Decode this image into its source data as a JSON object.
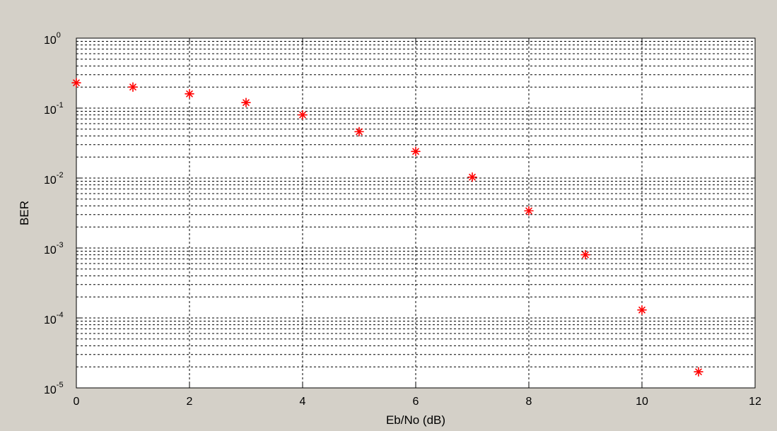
{
  "colors": {
    "figure_background": "#d4d0c8",
    "plot_background": "#ffffff",
    "axis": "#000000",
    "grid": "#000000",
    "marker": "#ff0000"
  },
  "chart_data": {
    "type": "scatter",
    "title": "",
    "xlabel": "Eb/No (dB)",
    "ylabel": "BER",
    "xscale": "linear",
    "yscale": "log",
    "xlim": [
      0,
      12
    ],
    "ylim": [
      1e-05,
      1
    ],
    "xticks": [
      0,
      2,
      4,
      6,
      8,
      10,
      12
    ],
    "xtick_labels": [
      "0",
      "2",
      "4",
      "6",
      "8",
      "10",
      "12"
    ],
    "ytick_exponents": [
      0,
      -1,
      -2,
      -3,
      -4,
      -5
    ],
    "ytick_base": "10",
    "grid": true,
    "grid_style": "dashed",
    "minor_grid": true,
    "marker": "star",
    "series": [
      {
        "x": [
          0,
          1,
          2,
          3,
          4,
          5,
          6,
          7,
          8,
          9,
          10,
          11
        ],
        "y": [
          0.23,
          0.2,
          0.16,
          0.12,
          0.08,
          0.046,
          0.024,
          0.0103,
          0.0034,
          0.0008,
          0.00013,
          1.7e-05
        ]
      }
    ]
  }
}
